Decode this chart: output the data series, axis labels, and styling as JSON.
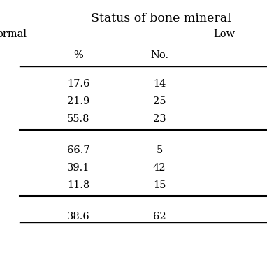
{
  "title": "Status of bone mineral",
  "subheader_left": "ormal",
  "subheader_right": "Low",
  "col_pct": "%",
  "col_no": "No.",
  "rows": [
    [
      "17.6",
      "14"
    ],
    [
      "21.9",
      "25"
    ],
    [
      "55.8",
      "23"
    ],
    [
      "66.7",
      "5"
    ],
    [
      "39.1",
      "42"
    ],
    [
      "11.8",
      "15"
    ],
    [
      "38.6",
      "62"
    ]
  ],
  "thick_lines_after_rows": [
    2,
    5
  ],
  "thin_line_before_data": true,
  "thin_line_after_last": true,
  "background_color": "#ffffff",
  "text_color": "#000000",
  "font_size": 10.5,
  "title_font_size": 12.5
}
